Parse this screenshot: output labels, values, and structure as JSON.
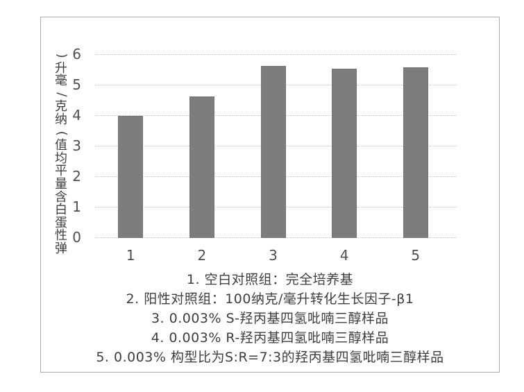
{
  "chart_data": {
    "type": "bar",
    "title": "",
    "xlabel": "",
    "ylabel": "弹性蛋白含量平均值(纳克/毫升)",
    "categories": [
      "1",
      "2",
      "3",
      "4",
      "5"
    ],
    "values": [
      3.95,
      4.6,
      5.6,
      5.5,
      5.55
    ],
    "ylim": [
      0,
      6
    ],
    "yticks": [
      0,
      1,
      2,
      3,
      4,
      5,
      6
    ],
    "grid": true,
    "legend_position": "none",
    "bar_color": "#7d7d7d",
    "gridline_color": "#c6c6c6"
  },
  "caption": {
    "lines": [
      "1. 空白对照组：完全培养基",
      "2. 阳性对照组：100纳克/毫升转化生长因子-β1",
      "3. 0.003% S-羟丙基四氢吡喃三醇样品",
      "4. 0.003% R-羟丙基四氢吡喃三醇样品",
      "5. 0.003% 构型比为S:R=7:3的羟丙基四氢吡喃三醇样品"
    ]
  },
  "colors": {
    "bar": "#7d7d7d",
    "grid": "#c6c6c6",
    "text": "#3f3f3f",
    "figure_border": "#ababab",
    "background": "#ffffff"
  }
}
